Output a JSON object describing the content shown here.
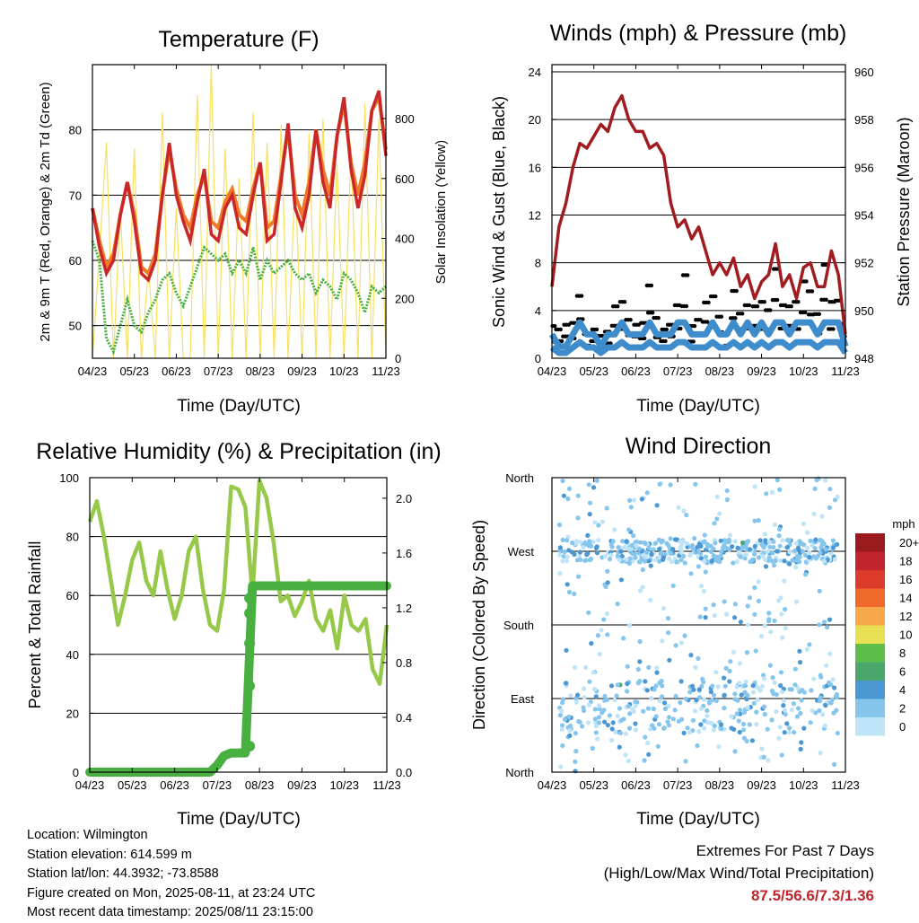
{
  "months": [
    "04/23",
    "05/23",
    "06/23",
    "07/23",
    "08/23",
    "09/23",
    "10/23",
    "11/23"
  ],
  "chart_data": [
    {
      "type": "line",
      "title": "Temperature (F)",
      "xlabel": "Time (Day/UTC)",
      "ylabel": "2m & 9m T (Red, Orange) & 2m Td (Green)",
      "y2label": "Solar Insolation (Yellow)",
      "ylim": [
        45,
        90
      ],
      "y2lim": [
        0,
        980
      ],
      "yticks": [
        50,
        60,
        70,
        80
      ],
      "y2ticks": [
        0,
        200,
        400,
        600,
        800
      ],
      "series": [
        {
          "name": "2m T",
          "color": "#c8282a",
          "values": [
            68,
            62,
            58,
            60,
            67,
            72,
            66,
            58,
            57,
            60,
            70,
            78,
            70,
            66,
            63,
            69,
            74,
            64,
            63,
            68,
            70,
            65,
            64,
            70,
            75,
            63,
            64,
            72,
            81,
            68,
            65,
            70,
            80,
            72,
            68,
            79,
            85,
            74,
            68,
            73,
            83,
            86,
            76
          ]
        },
        {
          "name": "9m T",
          "color": "#f07a28",
          "values": [
            68,
            63,
            59,
            61,
            67,
            72,
            67,
            59,
            58,
            61,
            70,
            77,
            71,
            67,
            65,
            70,
            73,
            66,
            65,
            69,
            71,
            67,
            66,
            71,
            75,
            65,
            66,
            73,
            80,
            70,
            67,
            72,
            80,
            74,
            70,
            79,
            84,
            75,
            70,
            75,
            83,
            85,
            77
          ]
        },
        {
          "name": "2m Td",
          "color": "#48b040",
          "values": [
            63,
            60,
            48,
            46,
            50,
            54,
            50,
            49,
            52,
            54,
            57,
            58,
            55,
            53,
            56,
            59,
            62,
            61,
            60,
            61,
            58,
            60,
            58,
            62,
            57,
            60,
            58,
            59,
            60,
            58,
            57,
            58,
            55,
            57,
            56,
            54,
            58,
            57,
            55,
            52,
            56,
            55,
            56
          ]
        },
        {
          "name": "Solar",
          "color": "#f8e060",
          "values": [
            0,
            350,
            720,
            0,
            500,
            0,
            700,
            0,
            300,
            0,
            820,
            0,
            500,
            0,
            0,
            880,
            0,
            980,
            0,
            700,
            0,
            600,
            0,
            820,
            0,
            720,
            0,
            780,
            0,
            600,
            0,
            750,
            0,
            800,
            0,
            650,
            0,
            700,
            0,
            850,
            0,
            800,
            0
          ]
        }
      ]
    },
    {
      "type": "line",
      "title": "Winds (mph) & Pressure (mb)",
      "xlabel": "Time (Day/UTC)",
      "ylabel": "Sonic Wind & Gust (Blue, Black)",
      "y2label": "Station Pressure (Maroon)",
      "ylim": [
        0,
        24.6
      ],
      "y2lim": [
        948,
        960.3
      ],
      "yticks": [
        0,
        4,
        8,
        12,
        16,
        20,
        24
      ],
      "y2ticks": [
        948,
        950,
        952,
        954,
        956,
        958,
        960
      ],
      "series": [
        {
          "name": "Pressure",
          "color": "#a01c20",
          "values": [
            951,
            953.5,
            954.5,
            956,
            957,
            956.8,
            957.3,
            957.8,
            957.5,
            958.5,
            959,
            958,
            957.5,
            957.5,
            956.8,
            957,
            956.5,
            954.5,
            953.5,
            953.8,
            953,
            953.5,
            952.5,
            951.5,
            952,
            951.5,
            952.2,
            951,
            951.5,
            950.5,
            951.2,
            951.5,
            952.8,
            951,
            951.5,
            950.5,
            951.8,
            952,
            951,
            951,
            952.5,
            951.5,
            949
          ]
        },
        {
          "name": "Gust",
          "color": "#000000",
          "values": [
            4,
            3,
            3,
            4,
            6,
            3,
            3,
            2,
            3,
            5,
            7,
            4,
            3,
            4,
            7,
            5,
            3,
            3,
            6,
            8,
            4,
            4,
            5,
            7,
            4,
            3,
            7,
            4,
            6,
            5,
            7,
            5,
            8,
            6,
            5,
            7,
            8,
            6,
            5,
            9,
            7,
            6,
            3
          ]
        },
        {
          "name": "Wind",
          "color": "#3f8ccd",
          "values": [
            2,
            1,
            1,
            2,
            3,
            2,
            2,
            1,
            2,
            2,
            3,
            2,
            2,
            2,
            3,
            2,
            2,
            2,
            3,
            3,
            2,
            2,
            2,
            3,
            2,
            2,
            3,
            2,
            3,
            2,
            3,
            2,
            3,
            3,
            2,
            3,
            3,
            3,
            2,
            3,
            3,
            3,
            1
          ]
        }
      ]
    },
    {
      "type": "line",
      "title": "Relative Humidity (%) & Precipitation (in)",
      "xlabel": "Time (Day/UTC)",
      "ylabel": "Percent & Total Rainfall",
      "ylim": [
        0,
        100
      ],
      "y2lim": [
        0,
        2.15
      ],
      "yticks": [
        0,
        20,
        40,
        60,
        80,
        100
      ],
      "y2ticks": [
        0.0,
        0.4,
        0.8,
        1.2,
        1.6,
        2.0
      ],
      "series": [
        {
          "name": "Relative Humidity",
          "color": "#96c84a",
          "values": [
            85,
            92,
            80,
            65,
            50,
            60,
            72,
            78,
            65,
            60,
            75,
            62,
            52,
            60,
            75,
            80,
            62,
            50,
            48,
            62,
            97,
            96,
            90,
            60,
            99,
            93,
            78,
            58,
            60,
            53,
            58,
            65,
            52,
            48,
            55,
            42,
            60,
            50,
            48,
            52,
            35,
            30,
            50
          ]
        },
        {
          "name": "Total Precipitation",
          "color": "#48b040",
          "values": [
            0,
            0,
            0,
            0,
            0,
            0,
            0,
            0,
            0,
            0,
            0,
            0,
            0,
            0,
            0,
            0,
            0,
            0,
            0.05,
            0.12,
            0.14,
            0.14,
            0.14,
            1.36,
            1.36,
            1.36,
            1.36,
            1.36,
            1.36,
            1.36,
            1.36,
            1.36,
            1.36,
            1.36,
            1.36,
            1.36,
            1.36,
            1.36,
            1.36,
            1.36,
            1.36,
            1.36,
            1.36
          ]
        }
      ]
    },
    {
      "type": "scatter",
      "title": "Wind Direction",
      "xlabel": "Time (Day/UTC)",
      "ylabel": "Direction (Colored By Speed)",
      "yticklabels": [
        "North",
        "East",
        "South",
        "West",
        "North"
      ],
      "legend": {
        "title": "mph",
        "labels": [
          "0",
          "2",
          "4",
          "6",
          "8",
          "10",
          "12",
          "14",
          "16",
          "18",
          "20+"
        ],
        "colors": [
          "#bfe4f8",
          "#86c5ec",
          "#4b97d2",
          "#4aa66a",
          "#5cbf4c",
          "#e6e052",
          "#f7a84a",
          "#ef6a2a",
          "#dc3a2a",
          "#c0242c",
          "#9a1a1e"
        ]
      }
    }
  ],
  "footer": {
    "location": "Location: Wilmington",
    "elevation": "Station elevation: 614.599 m",
    "latlon": "Station lat/lon: 44.3932; -73.8588",
    "created": "Figure created on Mon, 2025-08-11, at 23:24 UTC",
    "latest": "Most recent data timestamp: 2025/08/11 23:15:00"
  },
  "extremes": {
    "title": "Extremes For Past 7 Days",
    "subtitle": "(High/Low/Max Wind/Total Precipitation)",
    "values": "87.5/56.6/7.3/1.36"
  }
}
